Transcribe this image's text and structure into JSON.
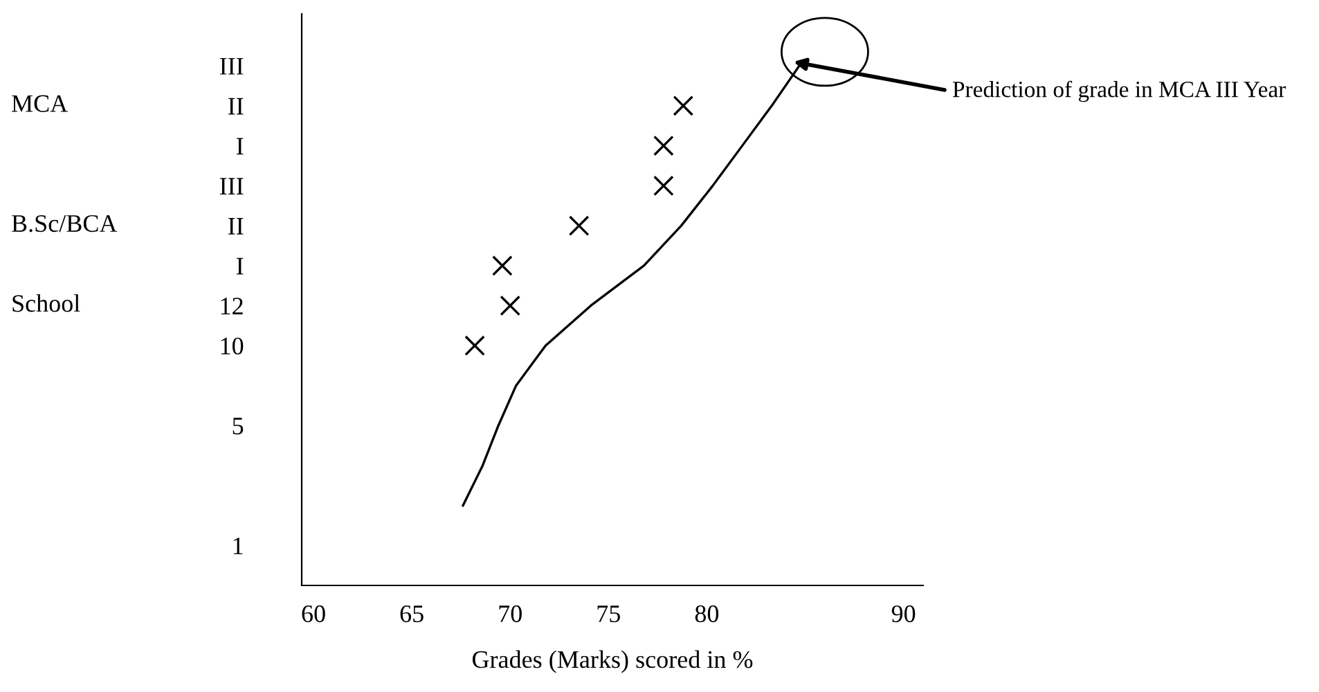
{
  "chart_data": {
    "type": "scatter",
    "orientation": "horizontal",
    "xlabel": "Grades (Marks) scored in %",
    "xlim": [
      59.4,
      91
    ],
    "xticks": [
      60,
      65,
      70,
      75,
      80,
      90
    ],
    "categories": [
      "III",
      "II",
      "I",
      "III",
      "II",
      "I",
      "12",
      "10",
      null,
      "5",
      null,
      null,
      "1"
    ],
    "grid": false,
    "legend": false,
    "marker": "cross",
    "series": [
      {
        "color": "#000000",
        "values": [
          null,
          78.8,
          77.8,
          77.8,
          73.5,
          69.6,
          70.0,
          68.2,
          null,
          null,
          null,
          null,
          null
        ]
      },
      {
        "type": "line",
        "color": "#000000",
        "marker": "none",
        "line_style": "solid",
        "values": [
          84.7,
          83.3,
          81.8,
          80.3,
          78.7,
          76.8,
          74.1,
          71.8,
          70.3,
          69.4,
          68.6,
          67.6,
          null
        ]
      }
    ],
    "annotations": [
      {
        "text": "Prediction of grade in MCA III Year",
        "x": 84.4,
        "y": "III"
      },
      "MCA",
      "B.Sc/BCA",
      "School"
    ]
  }
}
